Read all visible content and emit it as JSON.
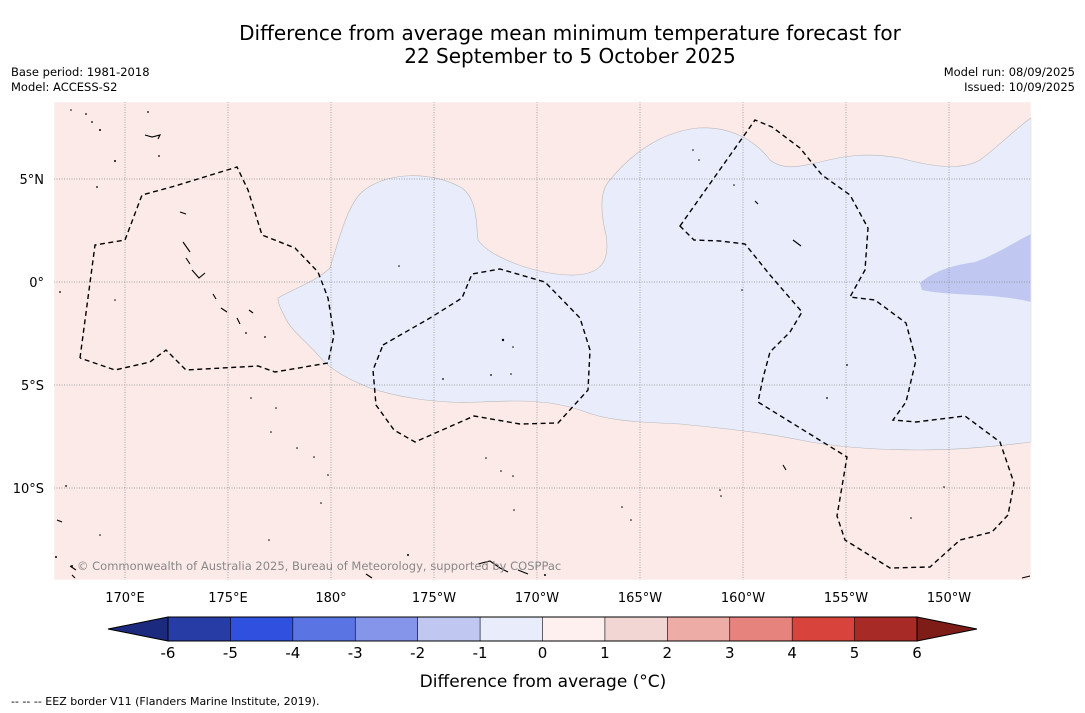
{
  "title": {
    "line1": "Difference from average mean minimum temperature forecast for",
    "line2": "22 September to 5 October 2025"
  },
  "meta_left": {
    "base_period": "Base period: 1981-2018",
    "model": "Model: ACCESS-S2"
  },
  "meta_right": {
    "model_run": "Model run: 08/09/2025",
    "issued": "Issued: 10/09/2025"
  },
  "map": {
    "lat_labels": [
      "5°N",
      "0°",
      "5°S",
      "10°S"
    ],
    "lon_labels": [
      "170°E",
      "175°E",
      "180°",
      "175°W",
      "170°W",
      "165°W",
      "160°W",
      "155°W",
      "150°W"
    ],
    "copyright": "© Commonwealth of Australia 2025, Bureau of Meteorology, supported by COSPPac",
    "regions": [
      {
        "label": "Difference 0 to 1",
        "color": "#fbeae8"
      },
      {
        "label": "Difference -1 to 0",
        "color": "#e8ecfb"
      },
      {
        "label": "Difference -2 to -1",
        "color": "#c0c8f2"
      }
    ]
  },
  "colorbar": {
    "ticks": [
      "-6",
      "-5",
      "-4",
      "-3",
      "-2",
      "-1",
      "0",
      "1",
      "2",
      "3",
      "4",
      "5",
      "6"
    ],
    "colors": [
      "#283ca6",
      "#3050e0",
      "#5a74e4",
      "#8495ea",
      "#c0c8f2",
      "#e8ecfb",
      "#fdf0ef",
      "#f2d6d3",
      "#eeaca6",
      "#e6837d",
      "#d8443b",
      "#a82a27"
    ],
    "under_color": "#1b2a7e",
    "over_color": "#7e1c18",
    "label": "Difference from average (°C)"
  },
  "footnote": "--  --  -- EEZ border V11 (Flanders Marine Institute, 2019)."
}
